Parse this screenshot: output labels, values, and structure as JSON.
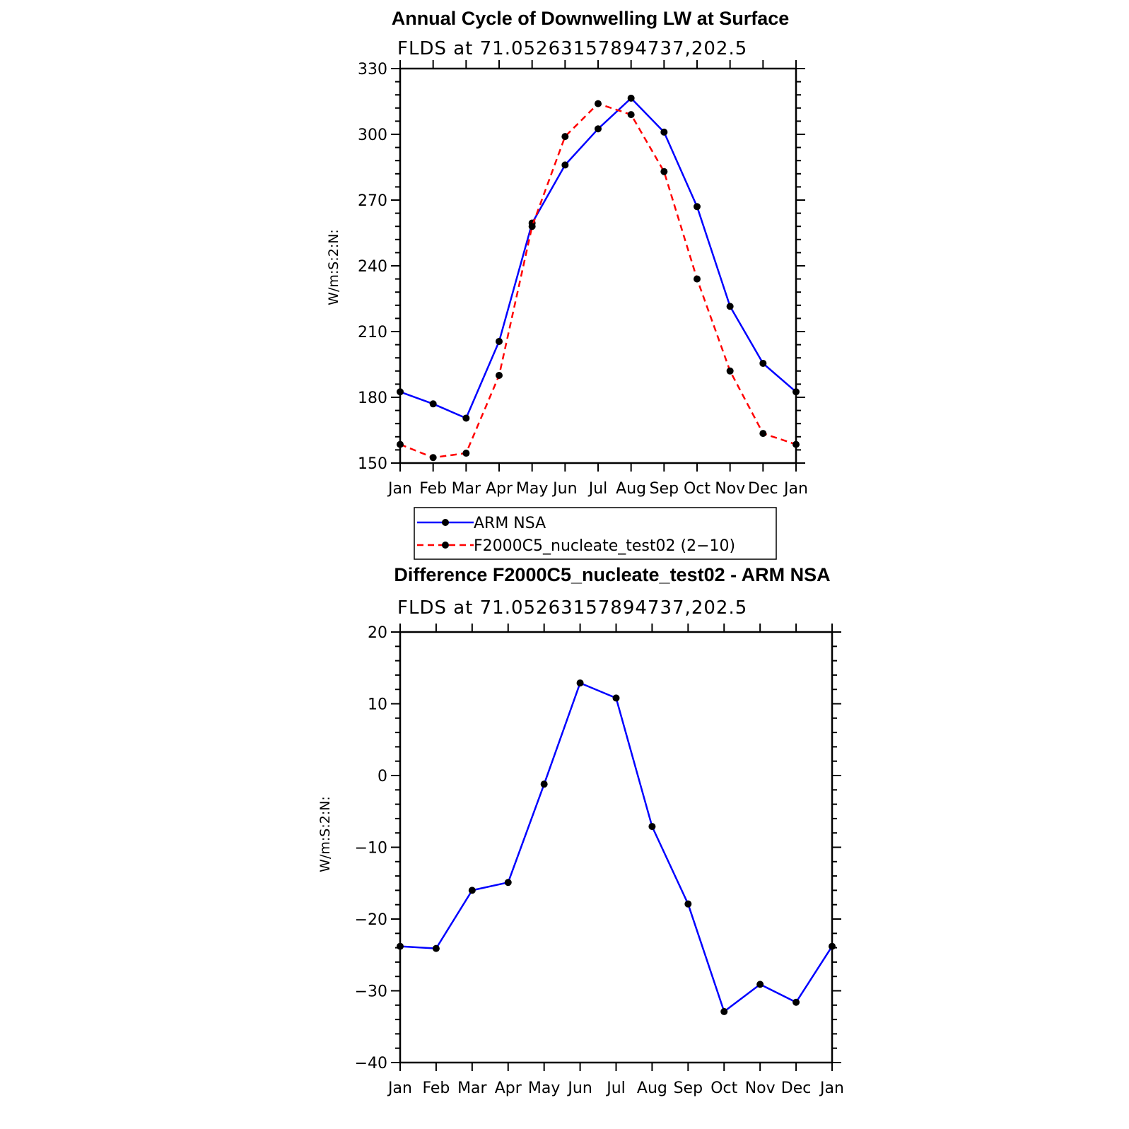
{
  "chart_data": [
    {
      "type": "line",
      "title": "Annual Cycle of Downwelling LW at Surface",
      "subtitle": "FLDS at 71.05263157894737,202.5",
      "ylabel": "W/m:S:2:N:",
      "xlabel": "",
      "categories": [
        "Jan",
        "Feb",
        "Mar",
        "Apr",
        "May",
        "Jun",
        "Jul",
        "Aug",
        "Sep",
        "Oct",
        "Nov",
        "Dec",
        "Jan"
      ],
      "ylim": [
        150,
        330
      ],
      "yticks": [
        150,
        180,
        210,
        240,
        270,
        300,
        330
      ],
      "series": [
        {
          "name": "ARM NSA",
          "color": "#0000ff",
          "dash": "solid",
          "values": [
            182.5,
            177,
            170.5,
            205.5,
            259.5,
            286,
            302.5,
            316.5,
            301,
            267,
            221.5,
            195.5,
            182.5
          ]
        },
        {
          "name": "F2000C5_nucleate_test02 (2−10)",
          "color": "#ff0000",
          "dash": "dashed",
          "values": [
            158.5,
            152.5,
            154.5,
            190,
            258,
            299,
            314,
            309,
            283,
            234,
            192,
            163.5,
            158.5
          ]
        }
      ],
      "legend_position": "bottom"
    },
    {
      "type": "line",
      "title": "Difference F2000C5_nucleate_test02 - ARM NSA",
      "subtitle": "FLDS at 71.05263157894737,202.5",
      "ylabel": "W/m:S:2:N:",
      "xlabel": "",
      "categories": [
        "Jan",
        "Feb",
        "Mar",
        "Apr",
        "May",
        "Jun",
        "Jul",
        "Aug",
        "Sep",
        "Oct",
        "Nov",
        "Dec",
        "Jan"
      ],
      "ylim": [
        -40,
        20
      ],
      "yticks": [
        -40,
        -30,
        -20,
        -10,
        0,
        10,
        20
      ],
      "series": [
        {
          "color": "#0000ff",
          "dash": "solid",
          "values": [
            -23.8,
            -24.1,
            -16,
            -14.9,
            -1.2,
            12.9,
            10.8,
            -7.1,
            -17.9,
            -32.9,
            -29.1,
            -31.6,
            -23.8
          ]
        }
      ]
    }
  ]
}
